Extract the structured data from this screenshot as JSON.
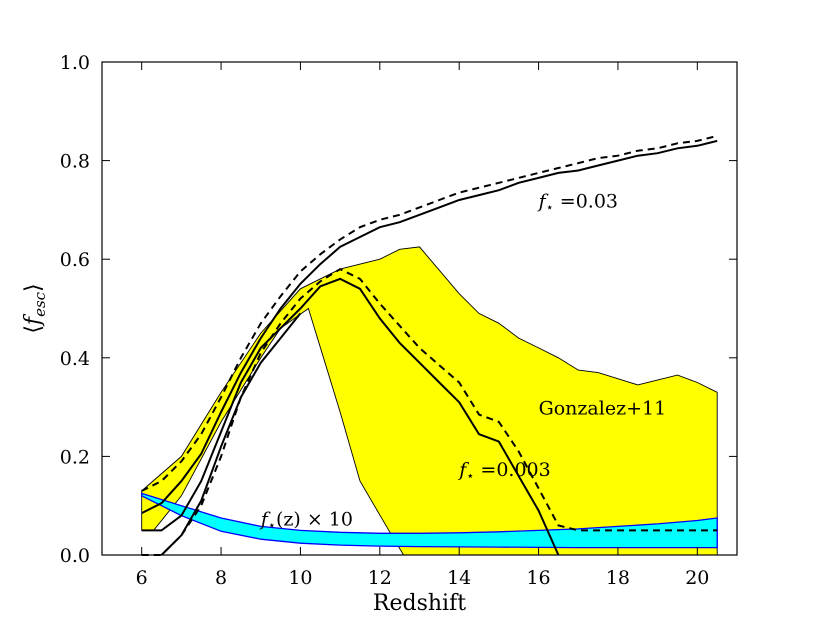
{
  "chart_data": {
    "type": "line",
    "title": "",
    "xlabel": "Redshift",
    "ylabel": "⟨f_esc⟩",
    "ylabel_parts": {
      "main": "f",
      "sub": "esc"
    },
    "xlim": [
      5,
      21
    ],
    "ylim": [
      0,
      1
    ],
    "xticks": [
      6,
      8,
      10,
      12,
      14,
      16,
      18,
      20
    ],
    "xtick_labels": [
      "6",
      "8",
      "10",
      "12",
      "14",
      "16",
      "18",
      "20"
    ],
    "yticks": [
      0.0,
      0.2,
      0.4,
      0.6,
      0.8,
      1.0
    ],
    "ytick_labels": [
      "0.0",
      "0.2",
      "0.4",
      "0.6",
      "0.8",
      "1.0"
    ],
    "colors": {
      "band_yellow": "#ffff00",
      "band_cyan": "#00ffff",
      "cyan_edge": "#0000ff",
      "line": "#000000"
    },
    "bands": [
      {
        "name": "Gonzalez+11",
        "color": "#ffff00",
        "upper": [
          [
            6,
            0.13
          ],
          [
            7,
            0.2
          ],
          [
            8,
            0.33
          ],
          [
            9,
            0.45
          ],
          [
            10,
            0.54
          ],
          [
            11,
            0.58
          ],
          [
            12,
            0.6
          ],
          [
            12.5,
            0.62
          ],
          [
            13,
            0.625
          ],
          [
            14,
            0.53
          ],
          [
            14.5,
            0.49
          ],
          [
            15,
            0.47
          ],
          [
            15.5,
            0.44
          ],
          [
            16,
            0.42
          ],
          [
            16.5,
            0.4
          ],
          [
            17,
            0.375
          ],
          [
            17.5,
            0.37
          ],
          [
            18.5,
            0.345
          ],
          [
            19.5,
            0.365
          ],
          [
            20,
            0.35
          ],
          [
            20.5,
            0.33
          ]
        ],
        "lower": [
          [
            20.5,
            0.0
          ],
          [
            12.6,
            0.0
          ],
          [
            12.3,
            0.04
          ],
          [
            11.5,
            0.15
          ],
          [
            11.0,
            0.29
          ],
          [
            10.2,
            0.5
          ],
          [
            9.5,
            0.46
          ],
          [
            9,
            0.4
          ],
          [
            8,
            0.27
          ],
          [
            7,
            0.12
          ],
          [
            6.3,
            0.05
          ],
          [
            6,
            0.05
          ]
        ]
      },
      {
        "name": "f*(z) x 10",
        "color": "#00ffff",
        "upper": [
          [
            6,
            0.125
          ],
          [
            7,
            0.1
          ],
          [
            8,
            0.075
          ],
          [
            9,
            0.058
          ],
          [
            10,
            0.05
          ],
          [
            11,
            0.046
          ],
          [
            12,
            0.044
          ],
          [
            13,
            0.044
          ],
          [
            14,
            0.045
          ],
          [
            15,
            0.047
          ],
          [
            16,
            0.05
          ],
          [
            17,
            0.053
          ],
          [
            18,
            0.058
          ],
          [
            19,
            0.063
          ],
          [
            20,
            0.07
          ],
          [
            20.5,
            0.075
          ]
        ],
        "lower": [
          [
            20.5,
            0.015
          ],
          [
            19,
            0.015
          ],
          [
            17,
            0.015
          ],
          [
            15,
            0.016
          ],
          [
            13,
            0.017
          ],
          [
            12,
            0.018
          ],
          [
            11,
            0.02
          ],
          [
            10,
            0.024
          ],
          [
            9,
            0.032
          ],
          [
            8,
            0.048
          ],
          [
            7,
            0.08
          ],
          [
            6,
            0.12
          ]
        ]
      }
    ],
    "series": [
      {
        "name": "f*=0.03 solid",
        "style": "solid",
        "x": [
          6,
          6.5,
          7,
          7.5,
          8,
          8.5,
          9,
          9.5,
          10,
          10.5,
          11,
          11.5,
          12,
          12.5,
          13,
          13.5,
          14,
          14.5,
          15,
          15.5,
          16,
          16.5,
          17,
          17.5,
          18,
          18.5,
          19,
          19.5,
          20,
          20.5
        ],
        "y": [
          0.085,
          0.105,
          0.15,
          0.205,
          0.29,
          0.37,
          0.44,
          0.5,
          0.55,
          0.59,
          0.625,
          0.645,
          0.665,
          0.675,
          0.69,
          0.705,
          0.72,
          0.73,
          0.74,
          0.755,
          0.765,
          0.775,
          0.78,
          0.79,
          0.8,
          0.81,
          0.815,
          0.825,
          0.83,
          0.84
        ]
      },
      {
        "name": "f*=0.03 dashed",
        "style": "dashed",
        "x": [
          6,
          6.5,
          7,
          7.5,
          8,
          8.5,
          9,
          9.5,
          10,
          10.5,
          11,
          11.5,
          12,
          12.5,
          13,
          13.5,
          14,
          14.5,
          15,
          15.5,
          16,
          16.5,
          17,
          17.5,
          18,
          18.5,
          19,
          19.5,
          20,
          20.5
        ],
        "y": [
          0.13,
          0.15,
          0.19,
          0.245,
          0.32,
          0.4,
          0.47,
          0.525,
          0.575,
          0.61,
          0.64,
          0.665,
          0.68,
          0.69,
          0.705,
          0.72,
          0.735,
          0.745,
          0.755,
          0.765,
          0.775,
          0.785,
          0.795,
          0.805,
          0.81,
          0.82,
          0.825,
          0.835,
          0.84,
          0.85
        ]
      },
      {
        "name": "f*=0.003 solid",
        "style": "solid",
        "x": [
          6,
          6.5,
          7,
          7.5,
          8,
          8.5,
          9,
          9.5,
          10,
          10.5,
          11,
          11.5,
          12,
          12.5,
          13,
          13.5,
          14,
          14.5,
          15,
          15.5,
          16,
          16.5
        ],
        "y": [
          0.05,
          0.05,
          0.08,
          0.15,
          0.25,
          0.35,
          0.42,
          0.46,
          0.5,
          0.545,
          0.56,
          0.54,
          0.48,
          0.43,
          0.39,
          0.35,
          0.31,
          0.245,
          0.23,
          0.16,
          0.09,
          0.0
        ]
      },
      {
        "name": "f*=0.003 dashed",
        "style": "dashed",
        "x": [
          6,
          6.5,
          7,
          7.5,
          8,
          8.5,
          9,
          9.5,
          10,
          10.5,
          11,
          11.5,
          12,
          12.5,
          13,
          13.5,
          14,
          14.5,
          15,
          15.5,
          16,
          16.5,
          17,
          17.5,
          18,
          18.5,
          19,
          19.5,
          20,
          20.5
        ],
        "y": [
          0.0,
          0.0,
          0.04,
          0.1,
          0.2,
          0.32,
          0.41,
          0.47,
          0.52,
          0.555,
          0.58,
          0.56,
          0.51,
          0.465,
          0.42,
          0.385,
          0.35,
          0.285,
          0.27,
          0.21,
          0.135,
          0.06,
          0.05,
          0.05,
          0.05,
          0.05,
          0.05,
          0.05,
          0.05,
          0.05
        ]
      },
      {
        "name": "lower bound solid",
        "style": "solid",
        "x": [
          6.5,
          7,
          7.5,
          8,
          8.5,
          9,
          9.5,
          10
        ],
        "y": [
          0.0,
          0.04,
          0.11,
          0.22,
          0.32,
          0.39,
          0.44,
          0.49
        ]
      }
    ],
    "annotations": [
      {
        "label": "f*=0.03",
        "text_main": "f",
        "text_sub": "⋆",
        "text_rest": " =0.03",
        "x": 16.0,
        "y": 0.705
      },
      {
        "label": "Gonzalez+11",
        "text": "Gonzalez+11",
        "x": 16.0,
        "y": 0.285
      },
      {
        "label": "f*=0.003",
        "text_main": "f",
        "text_sub": "⋆",
        "text_rest": " =0.003",
        "x": 14.0,
        "y": 0.16
      },
      {
        "label": "f*(z) x 10",
        "text_main": "f",
        "text_sub": "⋆",
        "text_rest": "(z) × 10",
        "x": 9.0,
        "y": 0.06
      }
    ]
  }
}
